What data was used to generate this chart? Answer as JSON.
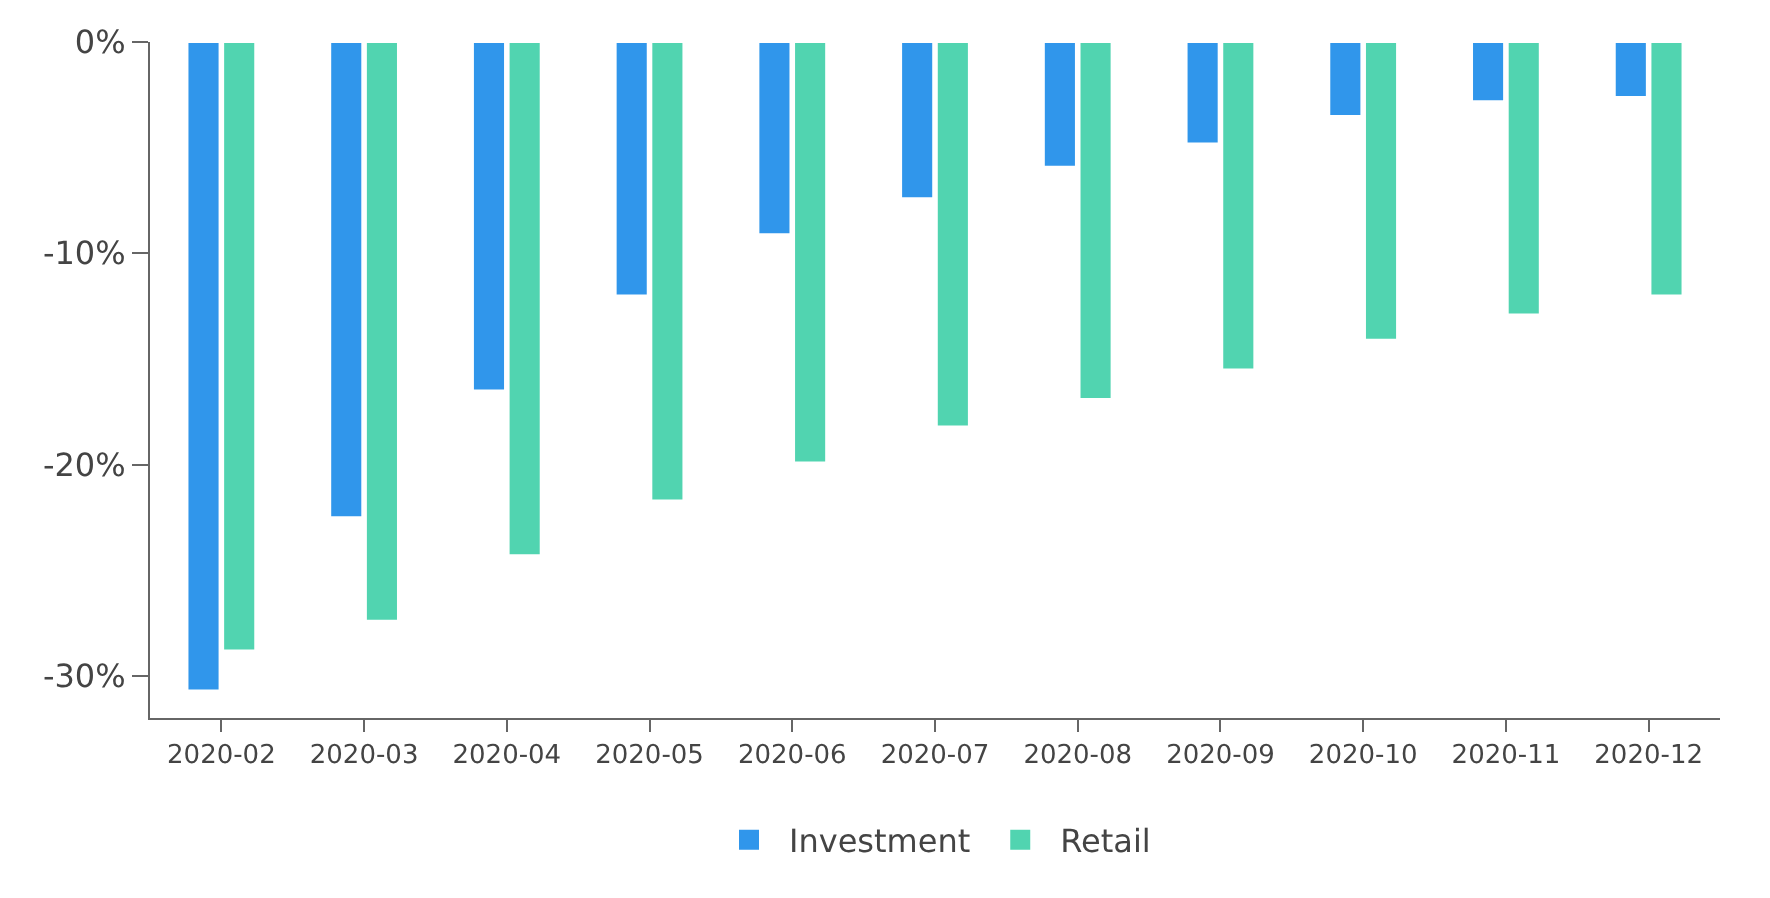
{
  "chart_data": {
    "type": "bar",
    "categories": [
      "2020-02",
      "2020-03",
      "2020-04",
      "2020-05",
      "2020-06",
      "2020-07",
      "2020-08",
      "2020-09",
      "2020-10",
      "2020-11",
      "2020-12"
    ],
    "series": [
      {
        "name": "Investment",
        "color": "#3096eb",
        "values": [
          -30.7,
          -22.5,
          -16.5,
          -12.0,
          -9.1,
          -7.4,
          -5.9,
          -4.8,
          -3.5,
          -2.8,
          -2.6
        ]
      },
      {
        "name": "Retail",
        "color": "#51d4b0",
        "values": [
          -28.8,
          -27.4,
          -24.3,
          -21.7,
          -19.9,
          -18.2,
          -16.9,
          -15.5,
          -14.1,
          -12.9,
          -12.0
        ]
      }
    ],
    "ylim": [
      -32,
      0
    ],
    "yticks": [
      {
        "value": 0,
        "label": "0%"
      },
      {
        "value": -10,
        "label": "-10%"
      },
      {
        "value": -20,
        "label": "-20%"
      },
      {
        "value": -30,
        "label": "-30%"
      }
    ],
    "legend": "bottom"
  }
}
